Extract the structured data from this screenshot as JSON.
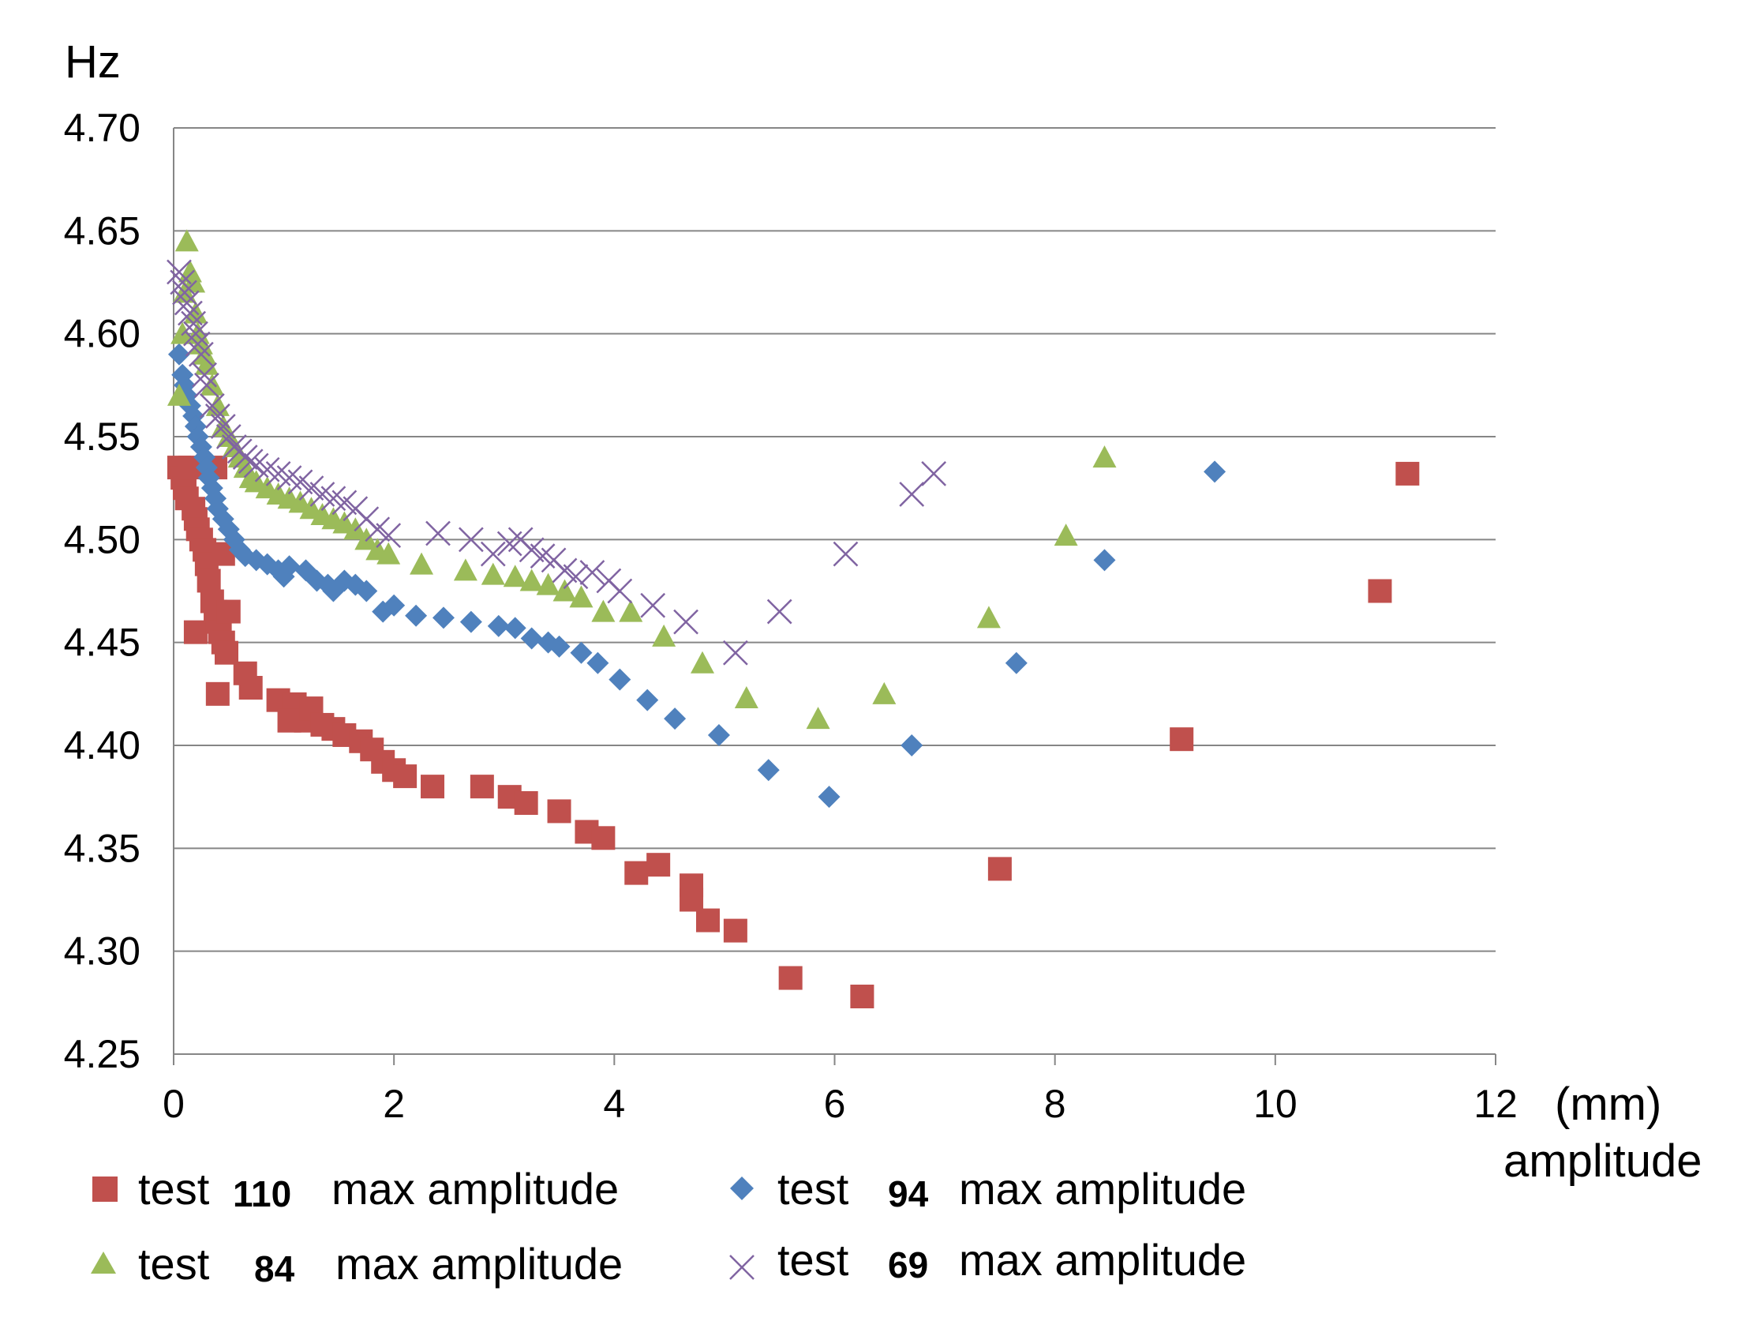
{
  "chart_data": {
    "type": "scatter",
    "title": "",
    "ylabel": "Hz",
    "xlabel_unit": "(mm)",
    "xlabel": "amplitude",
    "xlim": [
      0,
      12
    ],
    "ylim": [
      4.25,
      4.7
    ],
    "xticks": [
      "0",
      "2",
      "4",
      "6",
      "8",
      "10",
      "12"
    ],
    "yticks": [
      "4.25",
      "4.30",
      "4.35",
      "4.40",
      "4.45",
      "4.50",
      "4.55",
      "4.60",
      "4.65",
      "4.70"
    ],
    "grid": "horizontal",
    "colors": {
      "test110": "#c0504d",
      "test94": "#4f81bd",
      "test84": "#9bbb59",
      "test69": "#8064a2"
    },
    "series": [
      {
        "id": "test110",
        "prefix": "test",
        "number": "110",
        "suffix": "max amplitude",
        "marker": "square",
        "points": [
          [
            0.05,
            4.535
          ],
          [
            0.08,
            4.53
          ],
          [
            0.1,
            4.525
          ],
          [
            0.12,
            4.52
          ],
          [
            0.15,
            4.535
          ],
          [
            0.18,
            4.515
          ],
          [
            0.2,
            4.51
          ],
          [
            0.22,
            4.505
          ],
          [
            0.25,
            4.5
          ],
          [
            0.28,
            4.495
          ],
          [
            0.2,
            4.455
          ],
          [
            0.3,
            4.488
          ],
          [
            0.32,
            4.48
          ],
          [
            0.35,
            4.47
          ],
          [
            0.38,
            4.465
          ],
          [
            0.4,
            4.46
          ],
          [
            0.42,
            4.455
          ],
          [
            0.45,
            4.45
          ],
          [
            0.38,
            4.535
          ],
          [
            0.45,
            4.493
          ],
          [
            0.5,
            4.465
          ],
          [
            0.48,
            4.445
          ],
          [
            0.4,
            4.425
          ],
          [
            0.65,
            4.435
          ],
          [
            0.7,
            4.428
          ],
          [
            0.95,
            4.422
          ],
          [
            1.1,
            4.42
          ],
          [
            1.05,
            4.412
          ],
          [
            1.2,
            4.412
          ],
          [
            1.25,
            4.418
          ],
          [
            1.35,
            4.41
          ],
          [
            1.45,
            4.408
          ],
          [
            1.55,
            4.405
          ],
          [
            1.7,
            4.402
          ],
          [
            1.8,
            4.398
          ],
          [
            1.9,
            4.392
          ],
          [
            2.0,
            4.388
          ],
          [
            2.1,
            4.385
          ],
          [
            2.35,
            4.38
          ],
          [
            2.8,
            4.38
          ],
          [
            3.05,
            4.375
          ],
          [
            3.2,
            4.372
          ],
          [
            3.5,
            4.368
          ],
          [
            3.75,
            4.358
          ],
          [
            3.9,
            4.355
          ],
          [
            4.2,
            4.338
          ],
          [
            4.4,
            4.342
          ],
          [
            4.7,
            4.332
          ],
          [
            4.7,
            4.325
          ],
          [
            4.85,
            4.315
          ],
          [
            5.1,
            4.31
          ],
          [
            5.6,
            4.287
          ],
          [
            6.25,
            4.278
          ],
          [
            7.5,
            4.34
          ],
          [
            9.15,
            4.403
          ],
          [
            10.95,
            4.475
          ],
          [
            11.2,
            4.532
          ]
        ]
      },
      {
        "id": "test94",
        "prefix": "test",
        "number": "94",
        "suffix": "max amplitude",
        "marker": "diamond",
        "points": [
          [
            0.05,
            4.59
          ],
          [
            0.08,
            4.58
          ],
          [
            0.1,
            4.575
          ],
          [
            0.12,
            4.57
          ],
          [
            0.15,
            4.565
          ],
          [
            0.18,
            4.56
          ],
          [
            0.2,
            4.555
          ],
          [
            0.22,
            4.55
          ],
          [
            0.25,
            4.545
          ],
          [
            0.28,
            4.54
          ],
          [
            0.3,
            4.535
          ],
          [
            0.32,
            4.53
          ],
          [
            0.35,
            4.525
          ],
          [
            0.38,
            4.52
          ],
          [
            0.4,
            4.515
          ],
          [
            0.45,
            4.51
          ],
          [
            0.5,
            4.505
          ],
          [
            0.55,
            4.5
          ],
          [
            0.6,
            4.495
          ],
          [
            0.65,
            4.492
          ],
          [
            0.75,
            4.49
          ],
          [
            0.85,
            4.488
          ],
          [
            0.95,
            4.485
          ],
          [
            1.05,
            4.487
          ],
          [
            1.0,
            4.482
          ],
          [
            1.2,
            4.485
          ],
          [
            1.3,
            4.48
          ],
          [
            1.4,
            4.478
          ],
          [
            1.45,
            4.475
          ],
          [
            1.55,
            4.48
          ],
          [
            1.65,
            4.478
          ],
          [
            1.75,
            4.475
          ],
          [
            1.9,
            4.465
          ],
          [
            2.0,
            4.468
          ],
          [
            2.2,
            4.463
          ],
          [
            2.45,
            4.462
          ],
          [
            2.7,
            4.46
          ],
          [
            2.95,
            4.458
          ],
          [
            3.1,
            4.457
          ],
          [
            3.25,
            4.452
          ],
          [
            3.4,
            4.45
          ],
          [
            3.5,
            4.448
          ],
          [
            3.7,
            4.445
          ],
          [
            3.85,
            4.44
          ],
          [
            4.05,
            4.432
          ],
          [
            4.3,
            4.422
          ],
          [
            4.55,
            4.413
          ],
          [
            4.95,
            4.405
          ],
          [
            5.4,
            4.388
          ],
          [
            5.95,
            4.375
          ],
          [
            6.7,
            4.4
          ],
          [
            7.65,
            4.44
          ],
          [
            8.45,
            4.49
          ],
          [
            9.45,
            4.533
          ]
        ]
      },
      {
        "id": "test84",
        "prefix": "test",
        "number": "84",
        "suffix": "max amplitude",
        "marker": "triangle",
        "points": [
          [
            0.05,
            4.57
          ],
          [
            0.08,
            4.6
          ],
          [
            0.1,
            4.62
          ],
          [
            0.12,
            4.645
          ],
          [
            0.15,
            4.63
          ],
          [
            0.18,
            4.625
          ],
          [
            0.2,
            4.61
          ],
          [
            0.22,
            4.6
          ],
          [
            0.25,
            4.595
          ],
          [
            0.28,
            4.59
          ],
          [
            0.3,
            4.585
          ],
          [
            0.35,
            4.575
          ],
          [
            0.4,
            4.565
          ],
          [
            0.45,
            4.555
          ],
          [
            0.5,
            4.55
          ],
          [
            0.55,
            4.545
          ],
          [
            0.6,
            4.54
          ],
          [
            0.65,
            4.535
          ],
          [
            0.7,
            4.53
          ],
          [
            0.75,
            4.528
          ],
          [
            0.85,
            4.525
          ],
          [
            0.95,
            4.522
          ],
          [
            1.05,
            4.52
          ],
          [
            1.15,
            4.518
          ],
          [
            1.25,
            4.515
          ],
          [
            1.35,
            4.512
          ],
          [
            1.45,
            4.51
          ],
          [
            1.55,
            4.508
          ],
          [
            1.65,
            4.505
          ],
          [
            1.75,
            4.5
          ],
          [
            1.85,
            4.495
          ],
          [
            1.95,
            4.493
          ],
          [
            2.25,
            4.488
          ],
          [
            2.65,
            4.485
          ],
          [
            2.9,
            4.483
          ],
          [
            3.1,
            4.482
          ],
          [
            3.25,
            4.48
          ],
          [
            3.4,
            4.478
          ],
          [
            3.55,
            4.475
          ],
          [
            3.7,
            4.472
          ],
          [
            3.9,
            4.465
          ],
          [
            4.15,
            4.465
          ],
          [
            4.45,
            4.453
          ],
          [
            4.8,
            4.44
          ],
          [
            5.2,
            4.423
          ],
          [
            5.85,
            4.413
          ],
          [
            6.45,
            4.425
          ],
          [
            7.4,
            4.462
          ],
          [
            8.1,
            4.502
          ],
          [
            8.45,
            4.54
          ]
        ]
      },
      {
        "id": "test69",
        "prefix": "test",
        "number": "69",
        "suffix": "max amplitude",
        "marker": "x",
        "points": [
          [
            0.05,
            4.63
          ],
          [
            0.08,
            4.625
          ],
          [
            0.1,
            4.62
          ],
          [
            0.12,
            4.615
          ],
          [
            0.15,
            4.61
          ],
          [
            0.18,
            4.605
          ],
          [
            0.2,
            4.6
          ],
          [
            0.22,
            4.595
          ],
          [
            0.25,
            4.59
          ],
          [
            0.28,
            4.58
          ],
          [
            0.3,
            4.575
          ],
          [
            0.35,
            4.565
          ],
          [
            0.4,
            4.56
          ],
          [
            0.45,
            4.555
          ],
          [
            0.5,
            4.55
          ],
          [
            0.55,
            4.545
          ],
          [
            0.6,
            4.543
          ],
          [
            0.65,
            4.54
          ],
          [
            0.7,
            4.538
          ],
          [
            0.75,
            4.536
          ],
          [
            0.85,
            4.534
          ],
          [
            0.95,
            4.532
          ],
          [
            1.05,
            4.53
          ],
          [
            1.15,
            4.528
          ],
          [
            1.25,
            4.525
          ],
          [
            1.35,
            4.522
          ],
          [
            1.45,
            4.52
          ],
          [
            1.55,
            4.518
          ],
          [
            1.65,
            4.515
          ],
          [
            1.75,
            4.51
          ],
          [
            1.85,
            4.505
          ],
          [
            1.95,
            4.502
          ],
          [
            2.4,
            4.503
          ],
          [
            2.7,
            4.5
          ],
          [
            2.9,
            4.493
          ],
          [
            3.05,
            4.498
          ],
          [
            3.15,
            4.5
          ],
          [
            3.25,
            4.495
          ],
          [
            3.35,
            4.492
          ],
          [
            3.45,
            4.49
          ],
          [
            3.55,
            4.485
          ],
          [
            3.65,
            4.482
          ],
          [
            3.8,
            4.484
          ],
          [
            3.95,
            4.48
          ],
          [
            4.05,
            4.475
          ],
          [
            4.35,
            4.468
          ],
          [
            4.65,
            4.46
          ],
          [
            5.1,
            4.445
          ],
          [
            5.5,
            4.465
          ],
          [
            6.1,
            4.493
          ],
          [
            6.7,
            4.522
          ],
          [
            6.9,
            4.532
          ]
        ]
      }
    ]
  }
}
